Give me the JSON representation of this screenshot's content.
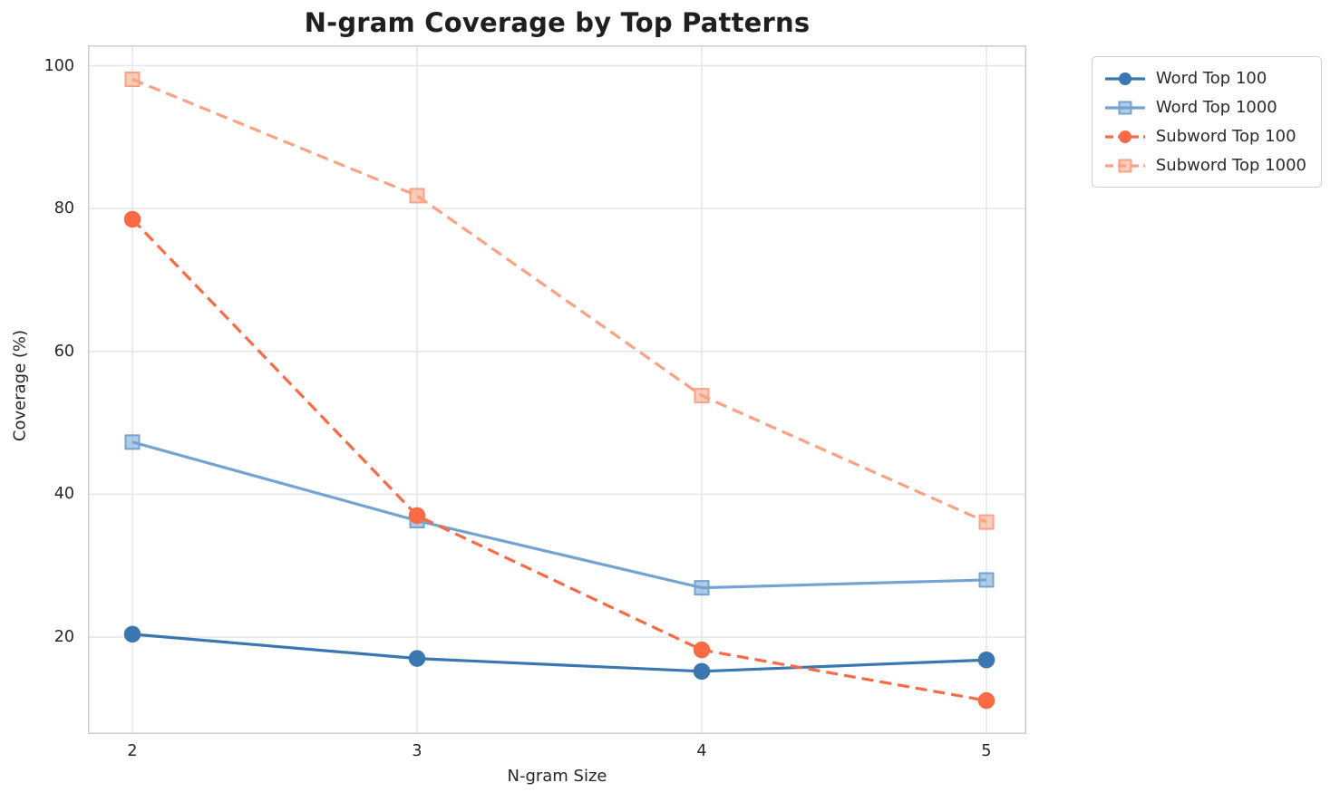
{
  "chart_data": {
    "type": "line",
    "title": "N-gram Coverage by Top Patterns",
    "xlabel": "N-gram Size",
    "ylabel": "Coverage (%)",
    "x": [
      2,
      3,
      4,
      5
    ],
    "xticks": [
      "2",
      "3",
      "4",
      "5"
    ],
    "yticks": [
      20,
      40,
      60,
      80,
      100
    ],
    "ylim": [
      6.4,
      102.9
    ],
    "xlim": [
      1.84,
      5.14
    ],
    "grid": true,
    "legend_position": "outside-upper-right",
    "colors": {
      "grid": "#e6e6e6",
      "spine": "#cccccc",
      "text": "#262626"
    },
    "series": [
      {
        "name": "Word Top 100",
        "color": "#3a76b0",
        "linestyle": "solid",
        "marker": "circle",
        "values": [
          20.4,
          17.0,
          15.2,
          16.8
        ]
      },
      {
        "name": "Word Top 1000",
        "color": "#74a3d2",
        "linestyle": "solid",
        "marker": "square",
        "values": [
          47.3,
          36.3,
          26.9,
          28.0
        ]
      },
      {
        "name": "Subword Top 100",
        "color": "#fa6a44",
        "linestyle": "dashed",
        "marker": "circle",
        "values": [
          78.5,
          37.0,
          18.2,
          11.1
        ]
      },
      {
        "name": "Subword Top 1000",
        "color": "#faa284",
        "linestyle": "dashed",
        "marker": "square",
        "values": [
          98.1,
          81.8,
          53.8,
          36.1
        ]
      }
    ]
  }
}
